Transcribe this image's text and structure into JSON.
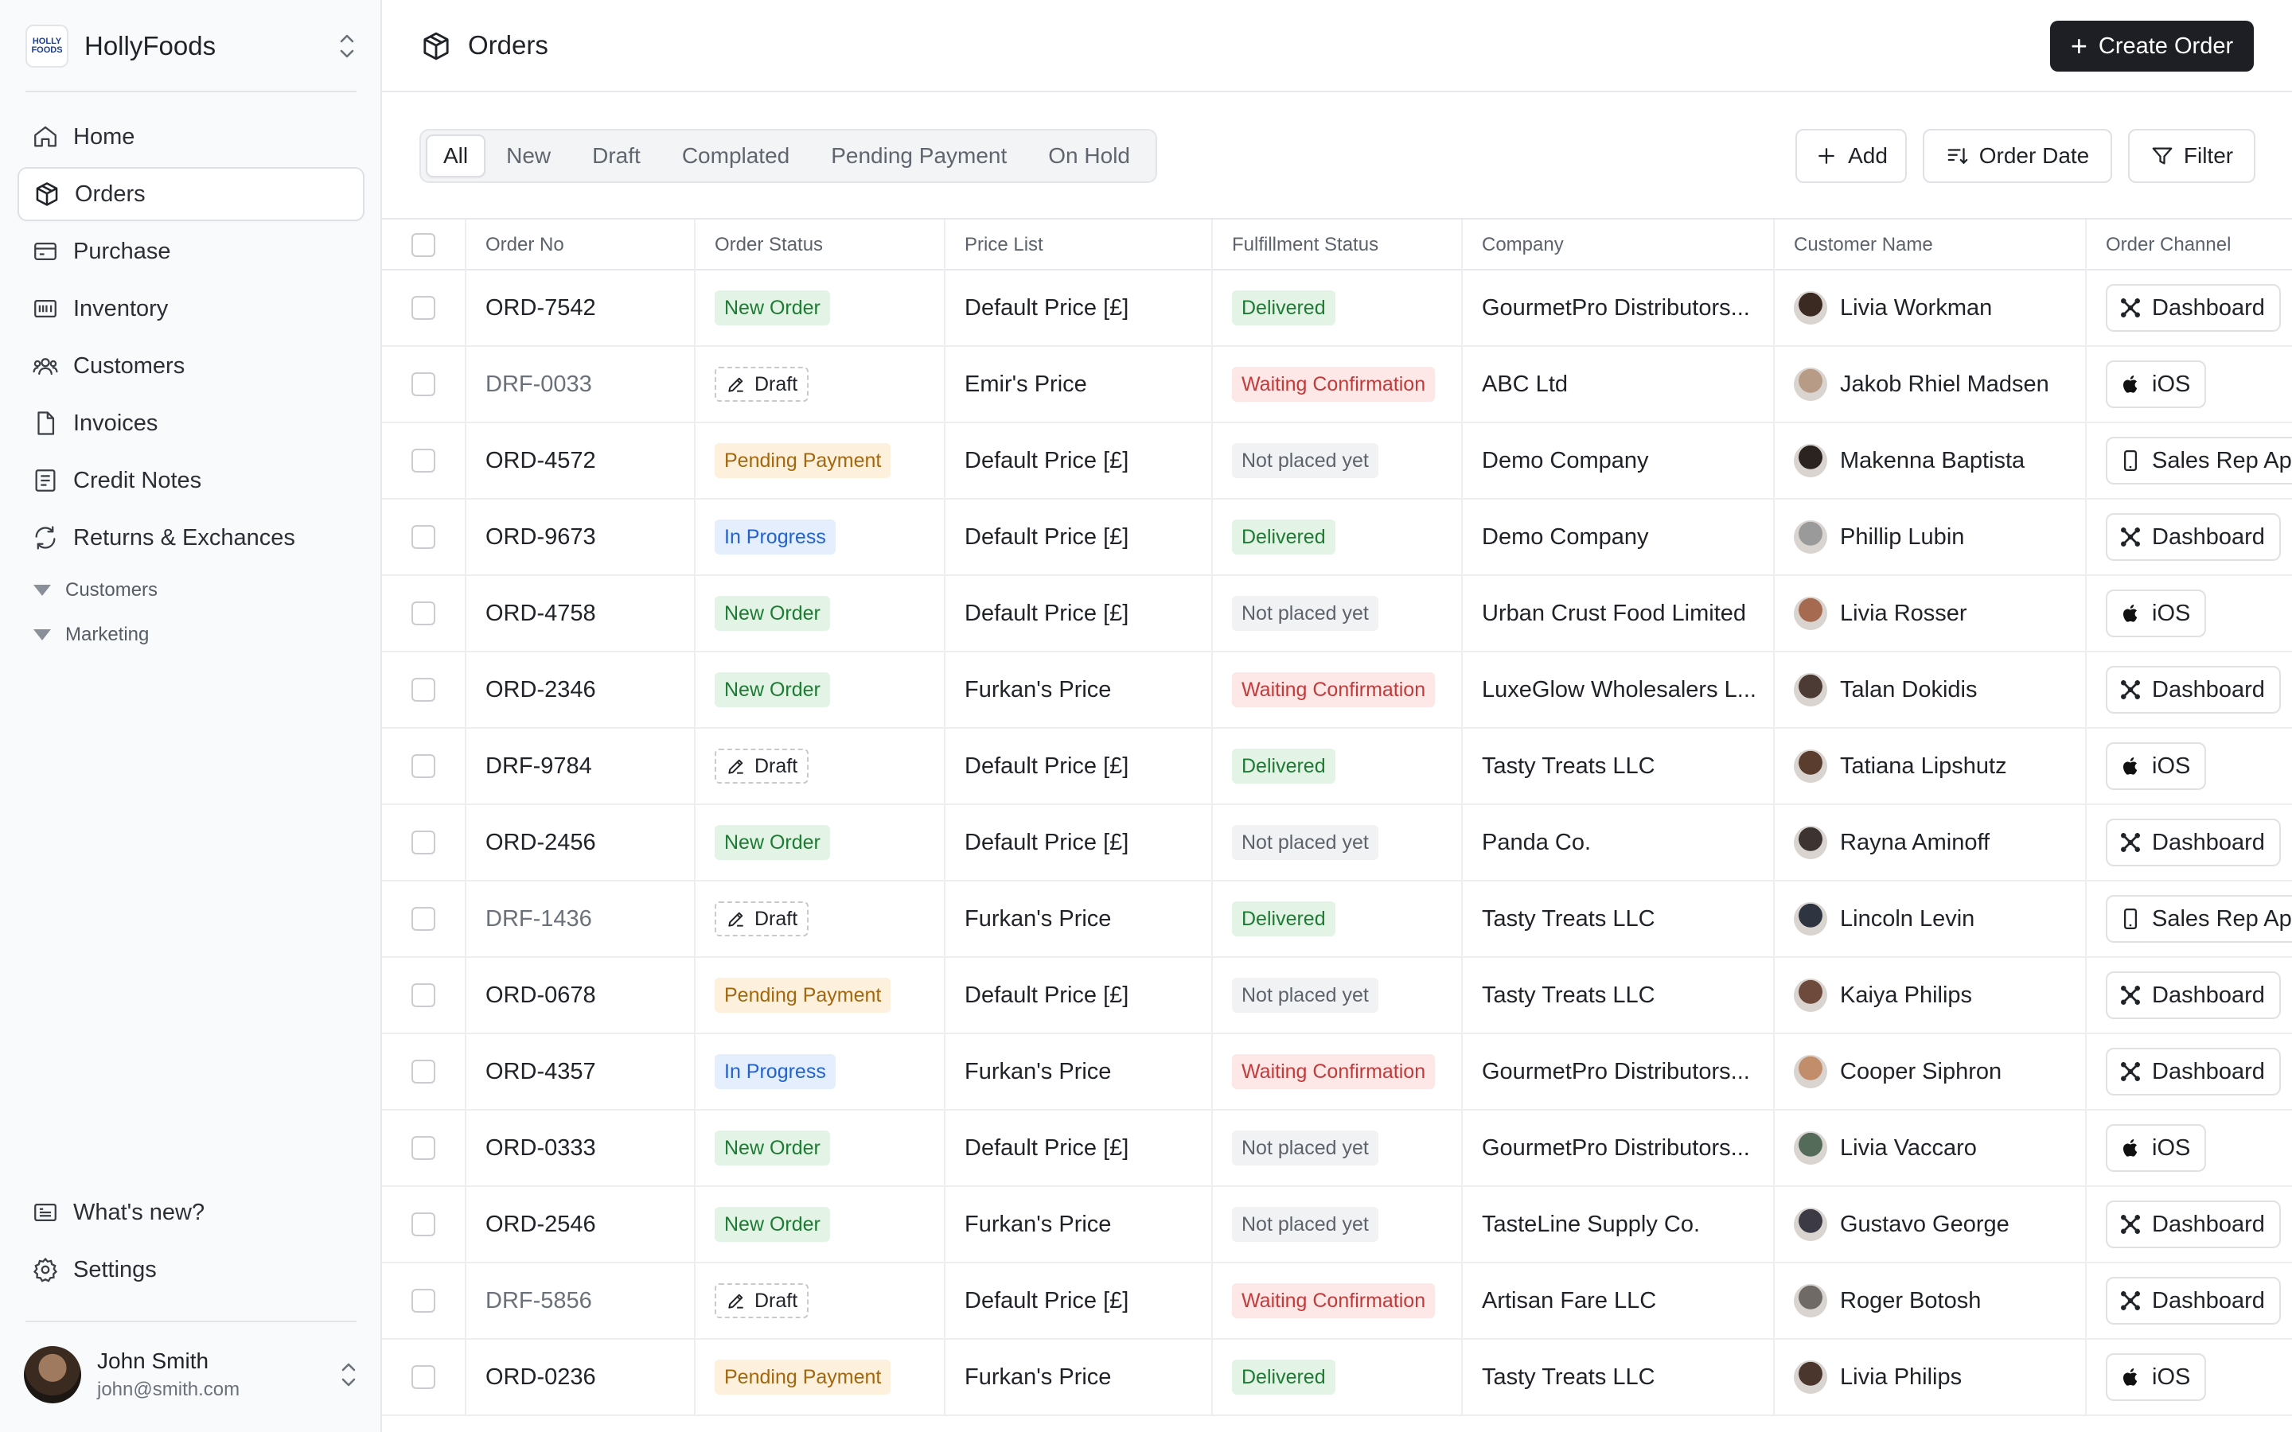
{
  "brand": {
    "name": "HollyFoods",
    "logo_text": "HOLLY FOODS"
  },
  "nav": [
    {
      "label": "Home",
      "icon": "home-icon"
    },
    {
      "label": "Orders",
      "icon": "box-icon",
      "active": true
    },
    {
      "label": "Purchase",
      "icon": "wallet-icon"
    },
    {
      "label": "Inventory",
      "icon": "inventory-icon"
    },
    {
      "label": "Customers",
      "icon": "users-icon"
    },
    {
      "label": "Invoices",
      "icon": "file-icon"
    },
    {
      "label": "Credit Notes",
      "icon": "receipt-icon"
    },
    {
      "label": "Returns & Exchances",
      "icon": "refresh-icon"
    }
  ],
  "nav_groups": [
    "Customers",
    "Marketing"
  ],
  "bottom_nav": [
    {
      "label": "What's new?",
      "icon": "news-icon"
    },
    {
      "label": "Settings",
      "icon": "gear-icon"
    }
  ],
  "user": {
    "name": "John Smith",
    "email": "john@smith.com"
  },
  "header": {
    "title": "Orders",
    "create_label": "Create Order"
  },
  "tabs": [
    "All",
    "New",
    "Draft",
    "Complated",
    "Pending Payment",
    "On Hold"
  ],
  "toolbar": {
    "add_label": "Add",
    "sort_label": "Order Date",
    "filter_label": "Filter"
  },
  "columns": [
    "Order No",
    "Order Status",
    "Price List",
    "Fulfillment Status",
    "Company",
    "Customer Name",
    "Order Channel"
  ],
  "rows": [
    {
      "order_no": "ORD-7542",
      "status": "New Order",
      "status_type": "new",
      "price_list": "Default Price [£]",
      "fulfillment": "Delivered",
      "fulfillment_type": "delivered",
      "company": "GourmetPro Distributors...",
      "customer": "Livia Workman",
      "channel": "Dashboard",
      "channel_icon": "dashboard-icon"
    },
    {
      "order_no": "DRF-0033",
      "status": "Draft",
      "status_type": "draft",
      "price_list": "Emir's Price",
      "fulfillment": "Waiting Confirmation",
      "fulfillment_type": "waiting",
      "company": "ABC Ltd",
      "customer": "Jakob Rhiel Madsen",
      "channel": "iOS",
      "channel_icon": "apple-icon"
    },
    {
      "order_no": "ORD-4572",
      "status": "Pending Payment",
      "status_type": "pending",
      "price_list": "Default Price [£]",
      "fulfillment": "Not placed yet",
      "fulfillment_type": "notplaced",
      "company": "Demo Company",
      "customer": "Makenna Baptista",
      "channel": "Sales Rep App",
      "channel_icon": "phone-icon"
    },
    {
      "order_no": "ORD-9673",
      "status": "In Progress",
      "status_type": "progress",
      "price_list": "Default Price [£]",
      "fulfillment": "Delivered",
      "fulfillment_type": "delivered",
      "company": "Demo Company",
      "customer": "Phillip Lubin",
      "channel": "Dashboard",
      "channel_icon": "dashboard-icon"
    },
    {
      "order_no": "ORD-4758",
      "status": "New Order",
      "status_type": "new",
      "price_list": "Default Price [£]",
      "fulfillment": "Not placed yet",
      "fulfillment_type": "notplaced",
      "company": "Urban Crust Food Limited",
      "customer": "Livia Rosser",
      "channel": "iOS",
      "channel_icon": "apple-icon"
    },
    {
      "order_no": "ORD-2346",
      "status": "New Order",
      "status_type": "new",
      "price_list": "Furkan's Price",
      "fulfillment": "Waiting Confirmation",
      "fulfillment_type": "waiting",
      "company": "LuxeGlow Wholesalers L...",
      "customer": "Talan Dokidis",
      "channel": "Dashboard",
      "channel_icon": "dashboard-icon"
    },
    {
      "order_no": "DRF-9784",
      "status": "Draft",
      "status_type": "draft",
      "price_list": "Default Price [£]",
      "fulfillment": "Delivered",
      "fulfillment_type": "delivered",
      "company": "Tasty Treats LLC",
      "customer": "Tatiana Lipshutz",
      "channel": "iOS",
      "channel_icon": "apple-icon"
    },
    {
      "order_no": "ORD-2456",
      "status": "New Order",
      "status_type": "new",
      "price_list": "Default Price [£]",
      "fulfillment": "Not placed yet",
      "fulfillment_type": "notplaced",
      "company": "Panda Co.",
      "customer": "Rayna Aminoff",
      "channel": "Dashboard",
      "channel_icon": "dashboard-icon"
    },
    {
      "order_no": "DRF-1436",
      "status": "Draft",
      "status_type": "draft",
      "price_list": "Furkan's Price",
      "fulfillment": "Delivered",
      "fulfillment_type": "delivered",
      "company": "Tasty Treats LLC",
      "customer": "Lincoln Levin",
      "channel": "Sales Rep App",
      "channel_icon": "phone-icon"
    },
    {
      "order_no": "ORD-0678",
      "status": "Pending Payment",
      "status_type": "pending",
      "price_list": "Default Price [£]",
      "fulfillment": "Not placed yet",
      "fulfillment_type": "notplaced",
      "company": "Tasty Treats LLC",
      "customer": "Kaiya Philips",
      "channel": "Dashboard",
      "channel_icon": "dashboard-icon"
    },
    {
      "order_no": "ORD-4357",
      "status": "In Progress",
      "status_type": "progress",
      "price_list": "Furkan's Price",
      "fulfillment": "Waiting Confirmation",
      "fulfillment_type": "waiting",
      "company": "GourmetPro Distributors...",
      "customer": "Cooper Siphron",
      "channel": "Dashboard",
      "channel_icon": "dashboard-icon"
    },
    {
      "order_no": "ORD-0333",
      "status": "New Order",
      "status_type": "new",
      "price_list": "Default Price [£]",
      "fulfillment": "Not placed yet",
      "fulfillment_type": "notplaced",
      "company": "GourmetPro Distributors...",
      "customer": "Livia Vaccaro",
      "channel": "iOS",
      "channel_icon": "apple-icon"
    },
    {
      "order_no": "ORD-2546",
      "status": "New Order",
      "status_type": "new",
      "price_list": "Furkan's Price",
      "fulfillment": "Not placed yet",
      "fulfillment_type": "notplaced",
      "company": "TasteLine Supply Co.",
      "customer": "Gustavo George",
      "channel": "Dashboard",
      "channel_icon": "dashboard-icon"
    },
    {
      "order_no": "DRF-5856",
      "status": "Draft",
      "status_type": "draft",
      "price_list": "Default Price [£]",
      "fulfillment": "Waiting Confirmation",
      "fulfillment_type": "waiting",
      "company": "Artisan Fare LLC",
      "customer": "Roger Botosh",
      "channel": "Dashboard",
      "channel_icon": "dashboard-icon"
    },
    {
      "order_no": "ORD-0236",
      "status": "Pending Payment",
      "status_type": "pending",
      "price_list": "Furkan's Price",
      "fulfillment": "Delivered",
      "fulfillment_type": "delivered",
      "company": "Tasty Treats LLC",
      "customer": "Livia Philips",
      "channel": "iOS",
      "channel_icon": "apple-icon"
    }
  ],
  "colors": {
    "accent": "#1d1f24",
    "badge_green": "#1f7a33",
    "badge_blue": "#2463c9",
    "badge_amber": "#a2670f",
    "badge_red": "#c23b3b"
  }
}
